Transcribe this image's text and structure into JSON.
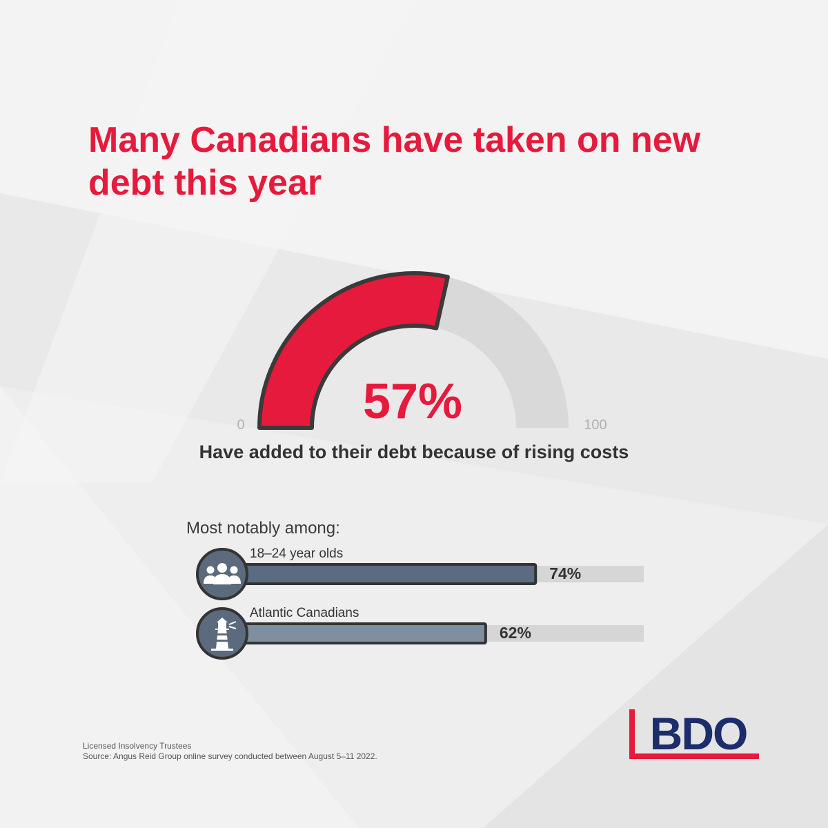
{
  "title": "Many Canadians have taken on new debt this year",
  "gauge": {
    "value": 57,
    "value_label": "57%",
    "min_label": "0",
    "max_label": "100",
    "caption": "Have added to their debt because of rising costs"
  },
  "subhead": "Most notably among:",
  "bars": [
    {
      "label": "18–24 year olds",
      "value": 74,
      "value_label": "74%",
      "icon": "group-people-icon"
    },
    {
      "label": "Atlantic Canadians",
      "value": 62,
      "value_label": "62%",
      "icon": "lighthouse-icon"
    }
  ],
  "footnotes": [
    "Licensed Insolvency Trustees",
    "Source: Angus Reid Group online survey conducted between August 5–11 2022."
  ],
  "logo": "BDO",
  "colors": {
    "accent_red": "#e61a3c",
    "gauge_track": "#d9d9d9",
    "outline": "#3a3a3a",
    "bar_dark": "#5b6c80",
    "bar_light": "#7f8ea0",
    "bar_track": "#d6d6d6",
    "icon_bg": "#5b6a7c",
    "logo_blue": "#1c2d6b"
  },
  "chart_data": [
    {
      "type": "gauge",
      "value": 57,
      "range": [
        0,
        100
      ],
      "center_label": "57%",
      "caption": "Have added to their debt because of rising costs"
    },
    {
      "type": "bar",
      "orientation": "horizontal",
      "title": "Most notably among:",
      "categories": [
        "18–24 year olds",
        "Atlantic Canadians"
      ],
      "values": [
        74,
        62
      ],
      "xlim": [
        0,
        100
      ]
    }
  ]
}
